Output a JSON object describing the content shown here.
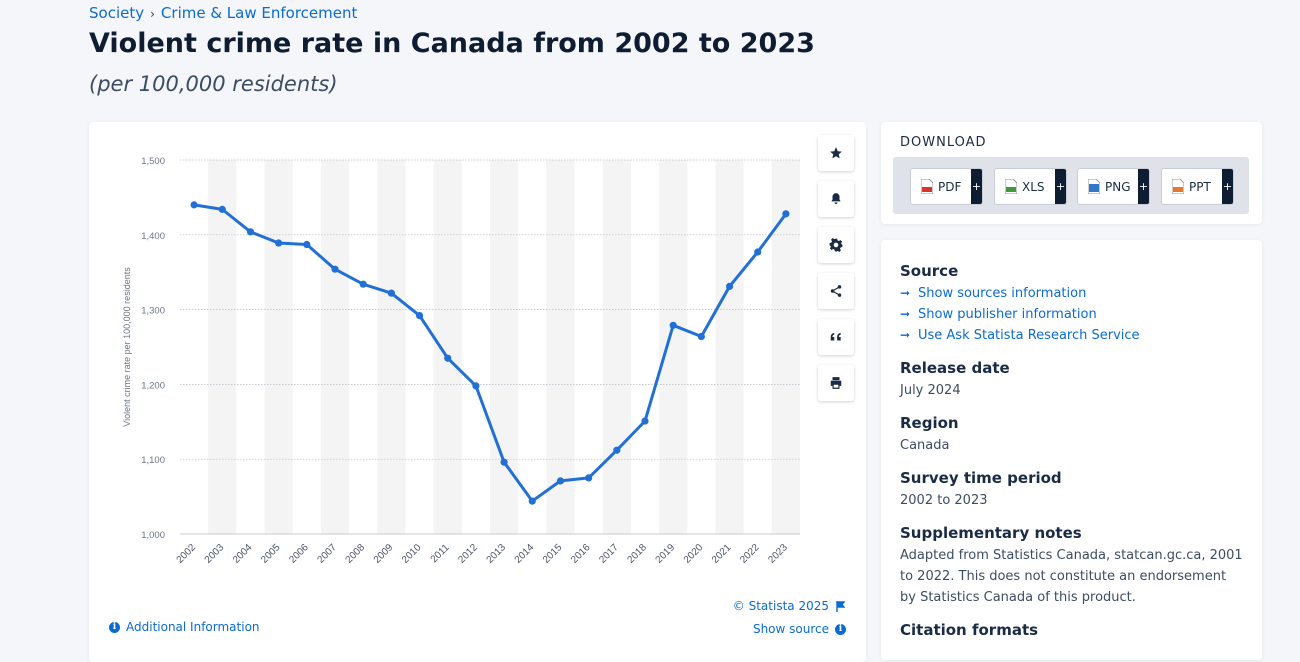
{
  "breadcrumb": {
    "items": [
      "Society",
      "Crime & Law Enforcement"
    ],
    "separator": "›"
  },
  "title": "Violent crime rate in Canada from 2002 to 2023",
  "subtitle": "(per 100,000 residents)",
  "chart_data": {
    "type": "line",
    "title": "Violent crime rate in Canada from 2002 to 2023",
    "xlabel": "",
    "ylabel": "Violent crime rate per 100,000 residents",
    "categories": [
      "2002",
      "2003",
      "2004",
      "2005",
      "2006",
      "2007",
      "2008",
      "2009",
      "2010",
      "2011",
      "2012",
      "2013",
      "2014",
      "2015",
      "2016",
      "2017",
      "2018",
      "2019",
      "2020",
      "2021",
      "2022",
      "2023"
    ],
    "series": [
      {
        "name": "Violent crime rate",
        "values": [
          1440,
          1434,
          1404,
          1389,
          1387,
          1354,
          1334,
          1322,
          1292,
          1235,
          1198,
          1096,
          1044,
          1071,
          1075,
          1112,
          1151,
          1279,
          1264,
          1331,
          1377,
          1428
        ]
      }
    ],
    "ylim": [
      1000,
      1500
    ],
    "yticks": [
      1000,
      1100,
      1200,
      1300,
      1400,
      1500
    ],
    "ytick_labels": [
      "1,000",
      "1,100",
      "1,200",
      "1,300",
      "1,400",
      "1,500"
    ],
    "grid": true,
    "line_color": "#2270d6"
  },
  "tools": [
    {
      "name": "favorite-icon",
      "label": "Favorite"
    },
    {
      "name": "bell-icon",
      "label": "Notify"
    },
    {
      "name": "gear-icon",
      "label": "Settings"
    },
    {
      "name": "share-icon",
      "label": "Share"
    },
    {
      "name": "quote-icon",
      "label": "Cite"
    },
    {
      "name": "print-icon",
      "label": "Print"
    }
  ],
  "chart_footer": {
    "additional_info": "Additional Information",
    "copyright": "© Statista 2025",
    "show_source": "Show source"
  },
  "download": {
    "title": "DOWNLOAD",
    "buttons": [
      {
        "label": "PDF",
        "color": "#d9342b"
      },
      {
        "label": "XLS",
        "color": "#3e9a3a"
      },
      {
        "label": "PNG",
        "color": "#3477c9"
      },
      {
        "label": "PPT",
        "color": "#e5782b"
      }
    ]
  },
  "info": {
    "source_heading": "Source",
    "source_links": [
      "Show sources information",
      "Show publisher information",
      "Use Ask Statista Research Service"
    ],
    "release_heading": "Release date",
    "release_value": "July 2024",
    "region_heading": "Region",
    "region_value": "Canada",
    "period_heading": "Survey time period",
    "period_value": "2002 to 2023",
    "notes_heading": "Supplementary notes",
    "notes_value": "Adapted from Statistics Canada, statcan.gc.ca, 2001 to 2022. This does not constitute an endorsement by Statistics Canada of this product.",
    "citation_heading": "Citation formats"
  }
}
